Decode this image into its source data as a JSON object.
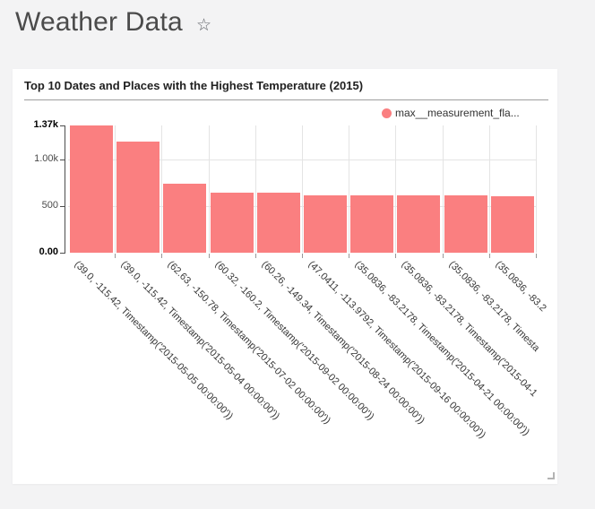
{
  "page": {
    "title": "Weather Data",
    "star_glyph": "☆"
  },
  "card": {
    "title": "Top 10 Dates and Places with the Highest Temperature (2015)",
    "legend": {
      "label": "max__measurement_fla...",
      "color": "#fa7f80"
    }
  },
  "chart_data": {
    "type": "bar",
    "title": "Top 10 Dates and Places with the Highest Temperature (2015)",
    "series_name": "max__measurement_fla...",
    "bar_color": "#fa7f80",
    "legend_position": "top-right",
    "grid": true,
    "ylim": [
      0,
      1370
    ],
    "yticks": [
      {
        "label": "1.37k",
        "value": 1370,
        "bold": true
      },
      {
        "label": "1.00k",
        "value": 1000,
        "bold": false
      },
      {
        "label": "500",
        "value": 500,
        "bold": false
      },
      {
        "label": "0.00",
        "value": 0,
        "bold": true
      }
    ],
    "categories": [
      "(39.0, -115.42, Timestamp('2015-05-05 00:00:00'))",
      "(39.0, -115.42, Timestamp('2015-05-04 00:00:00'))",
      "(62.63, -150.78, Timestamp('2015-07-02 00:00:00'))",
      "(60.32, -160.2, Timestamp('2015-09-02 00:00:00'))",
      "(60.26, -149.34, Timestamp('2015-08-24 00:00:00'))",
      "(47.0411, -113.9792, Timestamp('2015-09-16 00:00:00'))",
      "(35.0836, -83.2178, Timestamp('2015-04-21 00:00:00'))",
      "(35.0836, -83.2178, Timestamp('2015-04-1",
      "(35.0836, -83.2178, Timesta",
      "(35.0836, -83.2"
    ],
    "values": [
      1370,
      1200,
      740,
      650,
      645,
      620,
      617,
      615,
      613,
      612
    ]
  }
}
